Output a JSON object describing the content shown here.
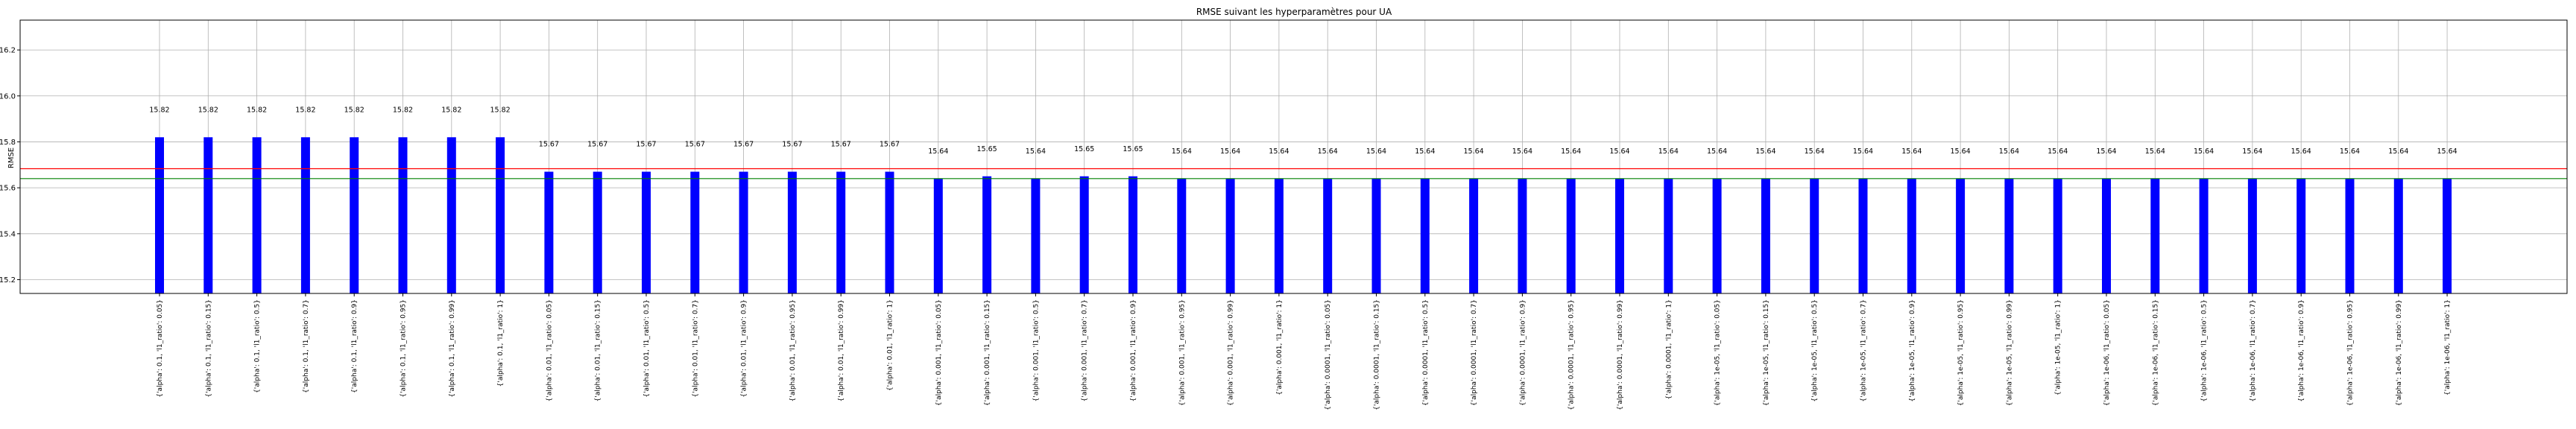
{
  "chart_data": {
    "type": "bar",
    "title": "RMSE suivant les hyperparamètres pour UA",
    "xlabel": "",
    "ylabel": "RMSE",
    "ylim": [
      15.14,
      16.33
    ],
    "yticks": [
      "15.2",
      "15.4",
      "15.6",
      "15.8",
      "16.0",
      "16.2"
    ],
    "grid": true,
    "bar_color": "#0000ff",
    "categories": [
      "{'alpha': 0.1, 'l1_ratio': 0.05}",
      "{'alpha': 0.1, 'l1_ratio': 0.15}",
      "{'alpha': 0.1, 'l1_ratio': 0.5}",
      "{'alpha': 0.1, 'l1_ratio': 0.7}",
      "{'alpha': 0.1, 'l1_ratio': 0.9}",
      "{'alpha': 0.1, 'l1_ratio': 0.95}",
      "{'alpha': 0.1, 'l1_ratio': 0.99}",
      "{'alpha': 0.1, 'l1_ratio': 1}",
      "{'alpha': 0.01, 'l1_ratio': 0.05}",
      "{'alpha': 0.01, 'l1_ratio': 0.15}",
      "{'alpha': 0.01, 'l1_ratio': 0.5}",
      "{'alpha': 0.01, 'l1_ratio': 0.7}",
      "{'alpha': 0.01, 'l1_ratio': 0.9}",
      "{'alpha': 0.01, 'l1_ratio': 0.95}",
      "{'alpha': 0.01, 'l1_ratio': 0.99}",
      "{'alpha': 0.01, 'l1_ratio': 1}",
      "{'alpha': 0.001, 'l1_ratio': 0.05}",
      "{'alpha': 0.001, 'l1_ratio': 0.15}",
      "{'alpha': 0.001, 'l1_ratio': 0.5}",
      "{'alpha': 0.001, 'l1_ratio': 0.7}",
      "{'alpha': 0.001, 'l1_ratio': 0.9}",
      "{'alpha': 0.001, 'l1_ratio': 0.95}",
      "{'alpha': 0.001, 'l1_ratio': 0.99}",
      "{'alpha': 0.001, 'l1_ratio': 1}",
      "{'alpha': 0.0001, 'l1_ratio': 0.05}",
      "{'alpha': 0.0001, 'l1_ratio': 0.15}",
      "{'alpha': 0.0001, 'l1_ratio': 0.5}",
      "{'alpha': 0.0001, 'l1_ratio': 0.7}",
      "{'alpha': 0.0001, 'l1_ratio': 0.9}",
      "{'alpha': 0.0001, 'l1_ratio': 0.95}",
      "{'alpha': 0.0001, 'l1_ratio': 0.99}",
      "{'alpha': 0.0001, 'l1_ratio': 1}",
      "{'alpha': 1e-05, 'l1_ratio': 0.05}",
      "{'alpha': 1e-05, 'l1_ratio': 0.15}",
      "{'alpha': 1e-05, 'l1_ratio': 0.5}",
      "{'alpha': 1e-05, 'l1_ratio': 0.7}",
      "{'alpha': 1e-05, 'l1_ratio': 0.9}",
      "{'alpha': 1e-05, 'l1_ratio': 0.95}",
      "{'alpha': 1e-05, 'l1_ratio': 0.99}",
      "{'alpha': 1e-05, 'l1_ratio': 1}",
      "{'alpha': 1e-06, 'l1_ratio': 0.05}",
      "{'alpha': 1e-06, 'l1_ratio': 0.15}",
      "{'alpha': 1e-06, 'l1_ratio': 0.5}",
      "{'alpha': 1e-06, 'l1_ratio': 0.7}",
      "{'alpha': 1e-06, 'l1_ratio': 0.9}",
      "{'alpha': 1e-06, 'l1_ratio': 0.95}",
      "{'alpha': 1e-06, 'l1_ratio': 0.99}",
      "{'alpha': 1e-06, 'l1_ratio': 1}"
    ],
    "values": [
      15.82,
      15.82,
      15.82,
      15.82,
      15.82,
      15.82,
      15.82,
      15.82,
      15.67,
      15.67,
      15.67,
      15.67,
      15.67,
      15.67,
      15.67,
      15.67,
      15.64,
      15.65,
      15.64,
      15.65,
      15.65,
      15.64,
      15.64,
      15.64,
      15.64,
      15.64,
      15.64,
      15.64,
      15.64,
      15.64,
      15.64,
      15.64,
      15.64,
      15.64,
      15.64,
      15.64,
      15.64,
      15.64,
      15.64,
      15.64,
      15.64,
      15.64,
      15.64,
      15.64,
      15.64,
      15.64,
      15.64,
      15.64
    ],
    "data_labels": [
      "15.82",
      "15.82",
      "15.82",
      "15.82",
      "15.82",
      "15.82",
      "15.82",
      "15.82",
      "15.67",
      "15.67",
      "15.67",
      "15.67",
      "15.67",
      "15.67",
      "15.67",
      "15.67",
      "15.64",
      "15.65",
      "15.64",
      "15.65",
      "15.65",
      "15.64",
      "15.64",
      "15.64",
      "15.64",
      "15.64",
      "15.64",
      "15.64",
      "15.64",
      "15.64",
      "15.64",
      "15.64",
      "15.64",
      "15.64",
      "15.64",
      "15.64",
      "15.64",
      "15.64",
      "15.64",
      "15.64",
      "15.64",
      "15.64",
      "15.64",
      "15.64",
      "15.64",
      "15.64",
      "15.64",
      "15.64"
    ],
    "reference_lines": [
      {
        "value": 15.683,
        "color": "#ff0000"
      },
      {
        "value": 15.64,
        "color": "#008000"
      }
    ]
  }
}
